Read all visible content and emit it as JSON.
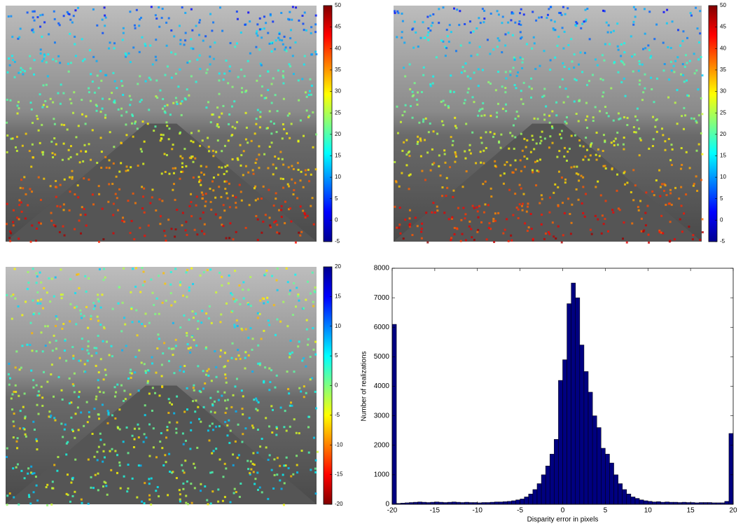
{
  "chart_data": [
    {
      "type": "image",
      "colormap": "jet",
      "clim": [
        -5,
        50
      ],
      "cticks": [
        -5,
        0,
        5,
        10,
        15,
        20,
        25,
        30,
        35,
        40,
        45,
        50
      ]
    },
    {
      "type": "image",
      "colormap": "jet",
      "clim": [
        -5,
        50
      ],
      "cticks": [
        -5,
        0,
        5,
        10,
        15,
        20,
        25,
        30,
        35,
        40,
        45,
        50
      ]
    },
    {
      "type": "image",
      "colormap": "jet_r",
      "clim": [
        -20,
        20
      ],
      "cticks": [
        -20,
        -15,
        -10,
        -5,
        0,
        5,
        10,
        15,
        20
      ]
    },
    {
      "type": "histogram",
      "xlabel": "Disparity error in pixels",
      "ylabel": "Number of realizations",
      "color": "#000080",
      "edgecolor": "#000000",
      "xlim": [
        -20,
        20
      ],
      "xticks": [
        -20,
        -15,
        -10,
        -5,
        0,
        5,
        10,
        15,
        20
      ],
      "ylim": [
        0,
        8000
      ],
      "yticks": [
        0,
        1000,
        2000,
        3000,
        4000,
        5000,
        6000,
        7000,
        8000
      ],
      "bins": [
        -20,
        -19.5,
        -19,
        -18.5,
        -18,
        -17.5,
        -17,
        -16.5,
        -16,
        -15.5,
        -15,
        -14.5,
        -14,
        -13.5,
        -13,
        -12.5,
        -12,
        -11.5,
        -11,
        -10.5,
        -10,
        -9.5,
        -9,
        -8.5,
        -8,
        -7.5,
        -7,
        -6.5,
        -6,
        -5.5,
        -5,
        -4.5,
        -4,
        -3.5,
        -3,
        -2.5,
        -2,
        -1.5,
        -1,
        -0.5,
        0,
        0.5,
        1,
        1.5,
        2,
        2.5,
        3,
        3.5,
        4,
        4.5,
        5,
        5.5,
        6,
        6.5,
        7,
        7.5,
        8,
        8.5,
        9,
        9.5,
        10,
        10.5,
        11,
        11.5,
        12,
        12.5,
        13,
        13.5,
        14,
        14.5,
        15,
        15.5,
        16,
        16.5,
        17,
        17.5,
        18,
        18.5,
        19,
        19.5,
        20
      ],
      "counts": [
        6100,
        30,
        40,
        50,
        60,
        70,
        80,
        70,
        60,
        70,
        80,
        70,
        60,
        70,
        80,
        70,
        60,
        70,
        60,
        60,
        50,
        60,
        60,
        70,
        80,
        80,
        90,
        100,
        120,
        150,
        180,
        250,
        350,
        500,
        700,
        1000,
        1300,
        1700,
        2200,
        4200,
        4900,
        6800,
        7500,
        7000,
        5400,
        4500,
        3800,
        3000,
        2600,
        1900,
        1700,
        1400,
        1000,
        700,
        500,
        350,
        250,
        200,
        150,
        120,
        100,
        80,
        90,
        70,
        80,
        70,
        70,
        60,
        70,
        60,
        60,
        50,
        60,
        60,
        60,
        50,
        50,
        50,
        100,
        2400
      ]
    }
  ]
}
